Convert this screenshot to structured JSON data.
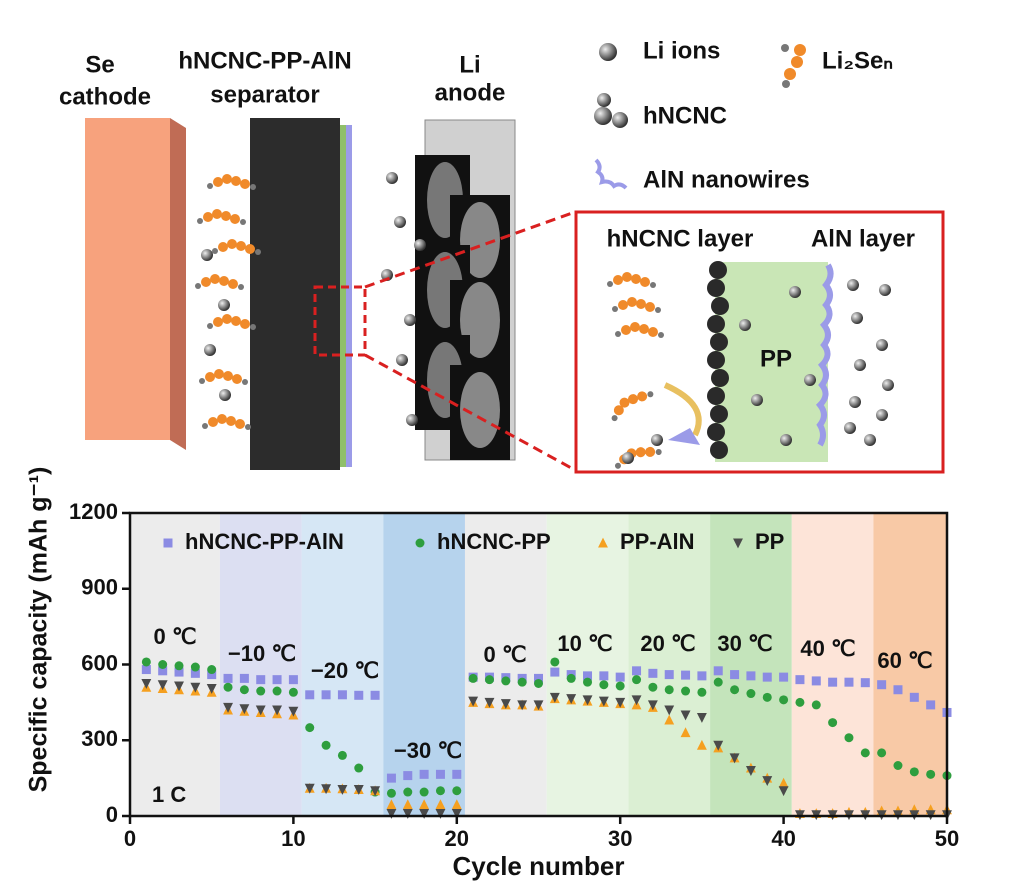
{
  "diagram": {
    "cathode_label": [
      "Se",
      "cathode"
    ],
    "separator_label": [
      "hNCNC-PP-AlN",
      "separator"
    ],
    "anode_label": [
      "Li",
      "anode"
    ],
    "legend": {
      "li_ions": "Li ions",
      "hncnc": "hNCNC",
      "aln": "AlN nanowires",
      "li2sen": "Li₂Seₙ"
    },
    "inset": {
      "left": "hNCNC layer",
      "right": "AlN layer",
      "middle": "PP"
    }
  },
  "chart_data": {
    "type": "scatter",
    "x_label": "Cycle number",
    "y_label": "Specific capacity (mAh g⁻¹)",
    "xlim": [
      0,
      50
    ],
    "ylim": [
      0,
      1200
    ],
    "xticks": [
      0,
      10,
      20,
      30,
      40,
      50
    ],
    "yticks": [
      0,
      300,
      600,
      900,
      1200
    ],
    "rate_label": "1 C",
    "bands": [
      {
        "label": "0 ℃",
        "range": [
          0,
          5.5
        ],
        "color": "#ececec"
      },
      {
        "label": "−10 ℃",
        "range": [
          5.5,
          10.5
        ],
        "color": "#dcdff2"
      },
      {
        "label": "−20 ℃",
        "range": [
          10.5,
          15.5
        ],
        "color": "#d6e7f5"
      },
      {
        "label": "−30 ℃",
        "range": [
          15.5,
          20.5
        ],
        "color": "#b6d3ed"
      },
      {
        "label": "0 ℃",
        "range": [
          20.5,
          25.5
        ],
        "color": "#ececec"
      },
      {
        "label": "10 ℃",
        "range": [
          25.5,
          30.5
        ],
        "color": "#e7f4e2"
      },
      {
        "label": "20 ℃",
        "range": [
          30.5,
          35.5
        ],
        "color": "#dbefd3"
      },
      {
        "label": "30 ℃",
        "range": [
          35.5,
          40.5
        ],
        "color": "#c4e4bb"
      },
      {
        "label": "40 ℃",
        "range": [
          40.5,
          45.5
        ],
        "color": "#fde4d8"
      },
      {
        "label": "60 ℃",
        "range": [
          45.5,
          50
        ],
        "color": "#f8c9a6"
      }
    ],
    "x": [
      1,
      2,
      3,
      4,
      5,
      6,
      7,
      8,
      9,
      10,
      11,
      12,
      13,
      14,
      15,
      16,
      17,
      18,
      19,
      20,
      21,
      22,
      23,
      24,
      25,
      26,
      27,
      28,
      29,
      30,
      31,
      32,
      33,
      34,
      35,
      36,
      37,
      38,
      39,
      40,
      41,
      42,
      43,
      44,
      45,
      46,
      47,
      48,
      49,
      50
    ],
    "series": [
      {
        "name": "hNCNC-PP-AlN",
        "color": "#8b8be3",
        "marker": "square",
        "values": [
          580,
          575,
          570,
          565,
          560,
          545,
          545,
          540,
          540,
          540,
          480,
          480,
          480,
          478,
          478,
          150,
          160,
          165,
          165,
          165,
          550,
          550,
          548,
          545,
          545,
          570,
          560,
          555,
          555,
          550,
          575,
          565,
          560,
          558,
          555,
          575,
          560,
          555,
          550,
          550,
          540,
          535,
          530,
          530,
          528,
          520,
          500,
          470,
          440,
          410
        ]
      },
      {
        "name": "hNCNC-PP",
        "color": "#2e9e3e",
        "marker": "circle",
        "values": [
          610,
          600,
          595,
          590,
          580,
          510,
          500,
          495,
          495,
          490,
          350,
          280,
          240,
          190,
          95,
          90,
          95,
          95,
          100,
          100,
          545,
          540,
          535,
          530,
          525,
          610,
          545,
          530,
          520,
          515,
          540,
          510,
          500,
          495,
          490,
          530,
          500,
          485,
          470,
          460,
          450,
          440,
          370,
          310,
          250,
          250,
          200,
          175,
          165,
          160
        ]
      },
      {
        "name": "PP-AlN",
        "color": "#f5a020",
        "marker": "triangle",
        "values": [
          510,
          505,
          500,
          495,
          490,
          420,
          415,
          410,
          405,
          400,
          110,
          110,
          108,
          105,
          100,
          45,
          45,
          45,
          45,
          45,
          450,
          445,
          440,
          440,
          435,
          465,
          460,
          455,
          450,
          445,
          440,
          430,
          380,
          330,
          280,
          270,
          230,
          190,
          150,
          130,
          10,
          10,
          10,
          15,
          15,
          20,
          20,
          25,
          25,
          25
        ]
      },
      {
        "name": "PP",
        "color": "#4a4a4a",
        "marker": "triangle-down",
        "values": [
          525,
          520,
          515,
          510,
          505,
          430,
          425,
          420,
          420,
          415,
          110,
          108,
          105,
          105,
          100,
          10,
          10,
          10,
          10,
          10,
          455,
          450,
          445,
          440,
          440,
          470,
          465,
          460,
          455,
          450,
          460,
          440,
          420,
          400,
          390,
          280,
          230,
          180,
          140,
          100,
          5,
          5,
          5,
          5,
          5,
          5,
          5,
          5,
          5,
          5
        ]
      }
    ]
  }
}
